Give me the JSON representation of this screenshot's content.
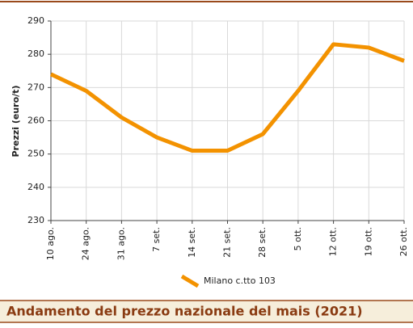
{
  "chart_data": {
    "type": "line",
    "title": "Andamento del prezzo nazionale del mais (2021)",
    "y_label": "Prezzi (euro/t)",
    "categories": [
      "10 ago.",
      "24 ago.",
      "31 ago.",
      "7 set.",
      "14 set.",
      "21 set.",
      "28 set.",
      "5 ott.",
      "12 ott.",
      "19 ott.",
      "26 ott."
    ],
    "series": [
      {
        "name": "Milano  c.tto 103",
        "color": "#f39200",
        "values": [
          274,
          269,
          261,
          255,
          251,
          251,
          256,
          269,
          283,
          282,
          278
        ]
      }
    ],
    "ylim": [
      230,
      290
    ],
    "yticks": [
      230,
      240,
      250,
      260,
      270,
      280,
      290
    ],
    "grid": true
  }
}
